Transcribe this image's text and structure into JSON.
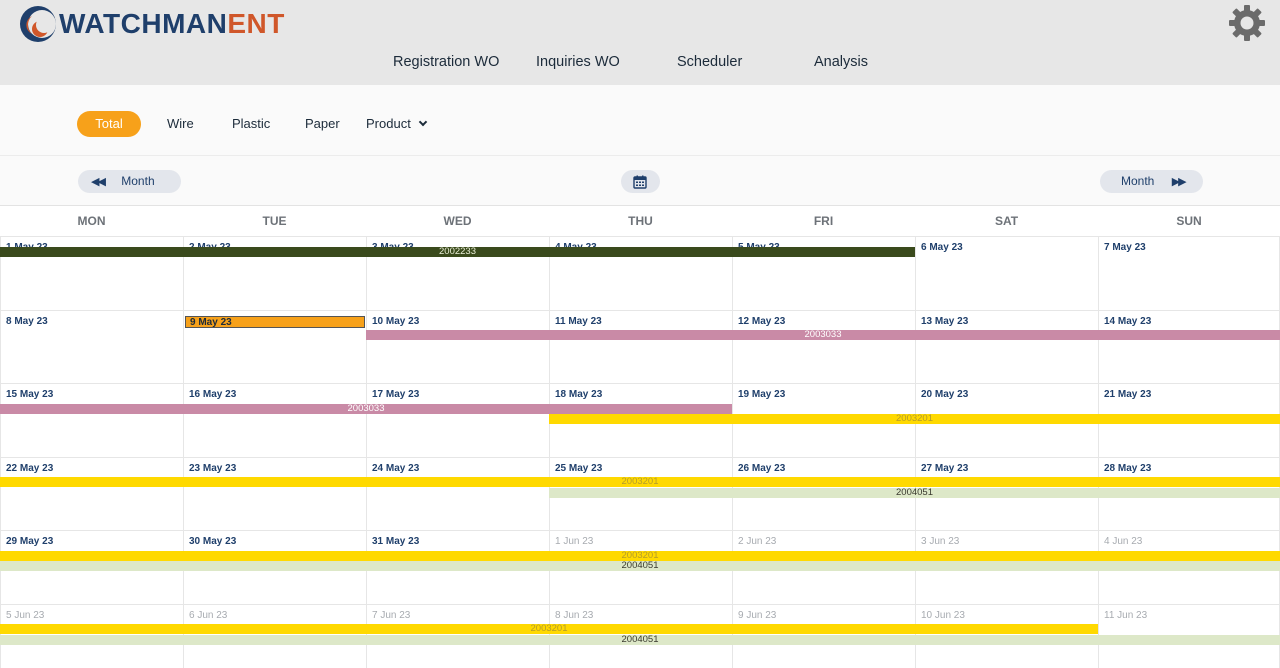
{
  "header": {
    "logo_text_1": "WATCHMAN",
    "logo_text_2": "ENT",
    "nav": [
      "Registration WO",
      "Inquiries WO",
      "Scheduler",
      "Analysis"
    ]
  },
  "filters": {
    "items": [
      "Total",
      "Wire",
      "Plastic",
      "Paper"
    ],
    "active": "Total",
    "dropdown_label": "Product"
  },
  "calendar_nav": {
    "prev_label": "Month",
    "next_label": "Month",
    "prev_arrows": "◀◀",
    "next_arrows": "▶▶"
  },
  "calendar": {
    "weekdays": [
      "MON",
      "TUE",
      "WED",
      "THU",
      "FRI",
      "SAT",
      "SUN"
    ],
    "weeks": [
      [
        "1 May 23",
        "2 May 23",
        "3 May 23",
        "4 May 23",
        "5 May 23",
        "6 May 23",
        "7 May 23"
      ],
      [
        "8 May 23",
        "9 May 23",
        "10 May 23",
        "11 May 23",
        "12 May 23",
        "13 May 23",
        "14 May 23"
      ],
      [
        "15 May 23",
        "16 May 23",
        "17 May 23",
        "18 May 23",
        "19 May 23",
        "20 May 23",
        "21 May 23"
      ],
      [
        "22 May 23",
        "23 May 23",
        "24 May 23",
        "25 May 23",
        "26 May 23",
        "27 May 23",
        "28 May 23"
      ],
      [
        "29 May 23",
        "30 May 23",
        "31 May 23",
        "1 Jun 23",
        "2 Jun 23",
        "3 Jun 23",
        "4 Jun 23"
      ],
      [
        "5 Jun 23",
        "6 Jun 23",
        "7 Jun 23",
        "8 Jun 23",
        "9 Jun 23",
        "10 Jun 23",
        "11 Jun 23"
      ]
    ],
    "current_month": "May",
    "today": "9 May 23",
    "events": [
      {
        "label": "2002233",
        "color": "green",
        "segments": [
          [
            0,
            0,
            4
          ]
        ]
      },
      {
        "label": "2003033",
        "color": "pink",
        "segments": [
          [
            1,
            2,
            6
          ],
          [
            2,
            0,
            3
          ]
        ]
      },
      {
        "label": "2003201",
        "color": "yellow",
        "segments": [
          [
            2,
            3,
            6
          ],
          [
            3,
            0,
            6
          ],
          [
            4,
            0,
            6
          ],
          [
            5,
            0,
            5
          ]
        ]
      },
      {
        "label": "2004051",
        "color": "lgreen",
        "segments": [
          [
            3,
            3,
            6
          ],
          [
            4,
            0,
            6
          ],
          [
            5,
            0,
            6
          ]
        ]
      }
    ]
  },
  "colors": {
    "brand_blue": "#1f3f6b",
    "brand_orange": "#d0572a",
    "active_filter": "#f7a11a",
    "event_green": "#3a4a1c",
    "event_pink": "#c98aa6",
    "event_yellow": "#ffd900",
    "event_lightgreen": "#dde8c8"
  },
  "icons": {
    "settings": "gear-icon",
    "calendar": "calendar-icon",
    "logo": "logo-icon"
  }
}
